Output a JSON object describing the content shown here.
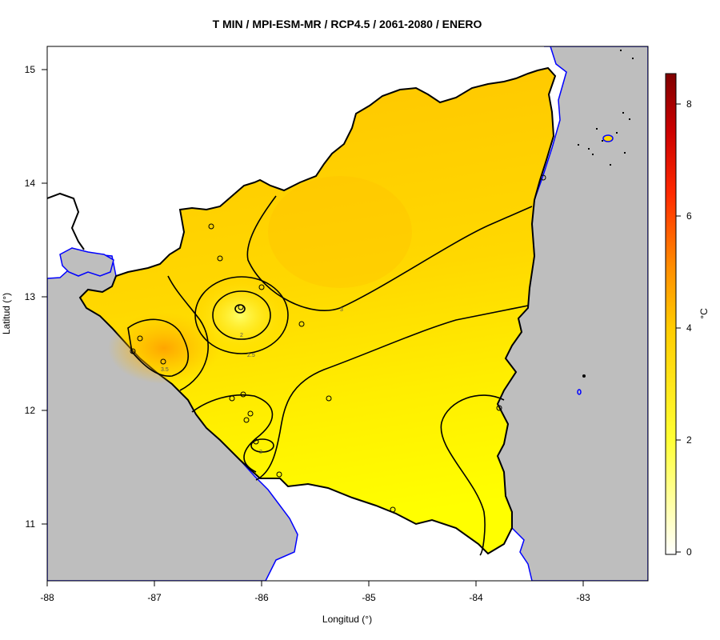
{
  "title": "T MIN / MPI-ESM-MR / RCP4.5 / 2061-2080 / ENERO",
  "x_axis": {
    "label": "Longitud (°)",
    "ticks": [
      "-88",
      "-87",
      "-86",
      "-85",
      "-84",
      "-83"
    ]
  },
  "y_axis": {
    "label": "Latitud (°)",
    "ticks": [
      "11",
      "12",
      "13",
      "14",
      "15"
    ]
  },
  "colorbar": {
    "unit": "°C",
    "ticks": [
      "0",
      "2",
      "4",
      "6",
      "8"
    ],
    "colors": [
      "#ffffff",
      "#ffff33",
      "#ffcc00",
      "#ff8c00",
      "#ff3300",
      "#cc0000",
      "#7f0000"
    ]
  },
  "contour_labels": [
    "3",
    "2",
    "2.5",
    "3.5",
    "3"
  ],
  "colors": {
    "sea": "#bebebe",
    "coast": "#0000ff",
    "border": "#000000",
    "field_high": "#ffc800",
    "field_low": "#ffff00"
  }
}
